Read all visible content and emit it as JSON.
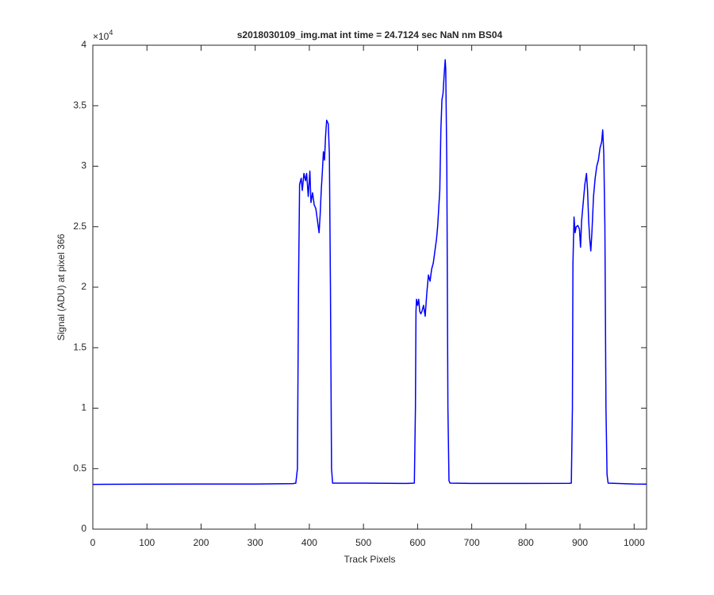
{
  "chart_data": {
    "type": "line",
    "title": "s2018030109_img.mat int time = 24.7124 sec  NaN nm BS04",
    "x_label": "Track Pixels",
    "y_label": "Signal (ADU) at pixel 366",
    "y_multiplier": {
      "base": "×10",
      "exponent": "4"
    },
    "x": [
      0,
      100,
      200,
      300,
      370,
      375,
      378,
      380,
      382,
      385,
      387,
      390,
      393,
      395,
      398,
      401,
      403,
      406,
      409,
      412,
      415,
      418,
      420,
      422,
      424,
      426,
      428,
      430,
      432,
      435,
      437,
      439,
      441,
      443,
      500,
      580,
      594,
      596,
      597,
      598,
      600,
      602,
      604,
      606,
      608,
      611,
      614,
      617,
      620,
      623,
      626,
      629,
      632,
      635,
      637,
      639,
      641,
      643,
      645,
      647,
      649,
      651,
      652,
      654,
      656,
      658,
      660,
      700,
      800,
      880,
      884,
      886,
      887,
      889,
      891,
      893,
      896,
      899,
      901,
      903,
      906,
      909,
      912,
      914,
      916,
      918,
      920,
      922,
      925,
      928,
      931,
      934,
      937,
      940,
      942,
      944,
      946,
      948,
      950,
      952,
      1000,
      1023
    ],
    "series": [
      {
        "name": "signal",
        "color": "#0000ff",
        "values": [
          3700,
          3720,
          3730,
          3730,
          3760,
          3800,
          5000,
          20000,
          28500,
          29000,
          28000,
          29400,
          28800,
          29400,
          27500,
          29600,
          27000,
          27800,
          26800,
          26500,
          25500,
          24500,
          26000,
          28000,
          29500,
          31200,
          30500,
          32500,
          33800,
          33500,
          31000,
          20000,
          5000,
          3800,
          3800,
          3780,
          3800,
          10000,
          18000,
          19000,
          18500,
          19000,
          18000,
          17800,
          18000,
          18500,
          17600,
          19500,
          21000,
          20500,
          21500,
          22000,
          23000,
          24000,
          25000,
          26500,
          28000,
          33000,
          35500,
          36000,
          37500,
          38800,
          38000,
          30000,
          10000,
          4000,
          3800,
          3780,
          3780,
          3790,
          3800,
          10000,
          22000,
          25800,
          24500,
          25000,
          25100,
          24800,
          23300,
          25500,
          27000,
          28500,
          29400,
          28000,
          25500,
          24000,
          23000,
          24500,
          27500,
          29000,
          30000,
          30500,
          31500,
          32000,
          33000,
          31000,
          25000,
          10000,
          4500,
          3800,
          3730,
          3720
        ]
      }
    ],
    "xlim": [
      0,
      1023
    ],
    "ylim": [
      0,
      40000
    ],
    "xticks": [
      0,
      100,
      200,
      300,
      400,
      500,
      600,
      700,
      800,
      900,
      1000
    ],
    "yticks": [
      {
        "value": 0,
        "label": "0"
      },
      {
        "value": 5000,
        "label": "0.5"
      },
      {
        "value": 10000,
        "label": "1"
      },
      {
        "value": 15000,
        "label": "1.5"
      },
      {
        "value": 20000,
        "label": "2"
      },
      {
        "value": 25000,
        "label": "2.5"
      },
      {
        "value": 30000,
        "label": "3"
      },
      {
        "value": 35000,
        "label": "3.5"
      },
      {
        "value": 40000,
        "label": "4"
      }
    ],
    "grid": false
  }
}
